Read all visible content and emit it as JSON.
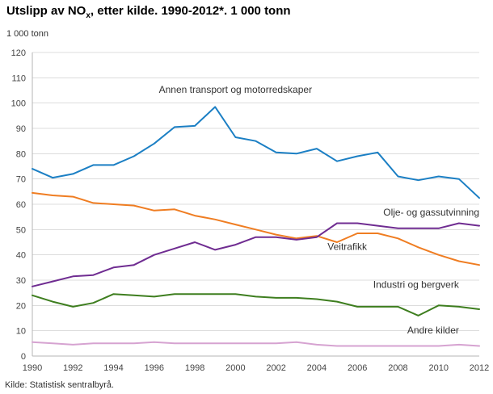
{
  "title": {
    "prefix": "Utslipp av NO",
    "subscript": "x",
    "suffix": ", etter kilde. 1990-2012*. 1 000 tonn"
  },
  "axis_unit_label": "1 000 tonn",
  "source_text": "Kilde: Statistisk sentralbyrå.",
  "chart_data": {
    "type": "line",
    "title": "Utslipp av NOx, etter kilde. 1990-2012*. 1 000 tonn",
    "xlabel": "",
    "ylabel": "1 000 tonn",
    "ylim": [
      0,
      120
    ],
    "ytick_step": 10,
    "grid": true,
    "legend_position": "inline-annotations",
    "x": [
      1990,
      1991,
      1992,
      1993,
      1994,
      1995,
      1996,
      1997,
      1998,
      1999,
      2000,
      2001,
      2002,
      2003,
      2004,
      2005,
      2006,
      2007,
      2008,
      2009,
      2010,
      2011,
      2012
    ],
    "xticks": [
      1990,
      1992,
      1994,
      1996,
      1998,
      2000,
      2002,
      2004,
      2006,
      2008,
      2010,
      2012
    ],
    "series": [
      {
        "name": "Annen transport og motorredskaper",
        "color": "#1b7fc4",
        "values": [
          74,
          70.5,
          72,
          75.5,
          75.5,
          79,
          84,
          90.5,
          91,
          98.5,
          86.5,
          85,
          80.5,
          80,
          82,
          77,
          79,
          80.5,
          71,
          69.5,
          71,
          70,
          62.5
        ]
      },
      {
        "name": "Veitrafikk",
        "color": "#ef7d22",
        "values": [
          64.5,
          63.5,
          63,
          60.5,
          60,
          59.5,
          57.5,
          58,
          55.5,
          54,
          52,
          50,
          48,
          46.5,
          47.5,
          45,
          48.5,
          48.5,
          46.5,
          43,
          40,
          37.5,
          36
        ]
      },
      {
        "name": "Olje- og gassutvinning",
        "color": "#6f2c91",
        "values": [
          27.5,
          29.5,
          31.5,
          32,
          35,
          36,
          40,
          42.5,
          45,
          42,
          44,
          47,
          47,
          46,
          47,
          52.5,
          52.5,
          51.5,
          50.5,
          50.5,
          50.5,
          52.5,
          51.5
        ]
      },
      {
        "name": "Industri og bergverk",
        "color": "#3e7e1f",
        "values": [
          24,
          21.5,
          19.5,
          21,
          24.5,
          24,
          23.5,
          24.5,
          24.5,
          24.5,
          24.5,
          23.5,
          23,
          23,
          22.5,
          21.5,
          19.5,
          19.5,
          19.5,
          16,
          20,
          19.5,
          18.5
        ]
      },
      {
        "name": "Andre kilder",
        "color": "#d6a3d1",
        "values": [
          5.5,
          5,
          4.5,
          5,
          5,
          5,
          5.5,
          5,
          5,
          5,
          5,
          5,
          5,
          5.5,
          4.5,
          4,
          4,
          4,
          4,
          4,
          4,
          4.5,
          4
        ]
      }
    ],
    "annotations": [
      {
        "text": "Annen transport og motorredskaper",
        "year": 2000,
        "value": 104,
        "anchor": "middle"
      },
      {
        "text": "Olje- og gassutvinning",
        "year": 2012,
        "value": 55.5,
        "anchor": "end"
      },
      {
        "text": "Veitrafikk",
        "year": 2005.5,
        "value": 42,
        "anchor": "middle"
      },
      {
        "text": "Industri og bergverk",
        "year": 2011,
        "value": 27,
        "anchor": "end"
      },
      {
        "text": "Andre kilder",
        "year": 2011,
        "value": 9,
        "anchor": "end"
      }
    ]
  }
}
